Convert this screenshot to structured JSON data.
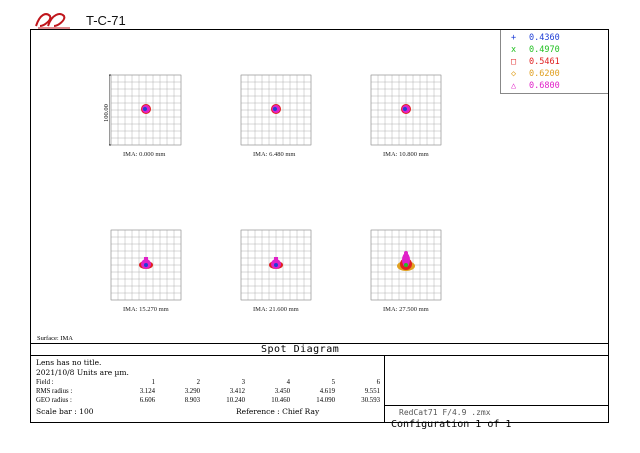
{
  "app": {
    "title": "T-C-71"
  },
  "legend": [
    {
      "wavelength": "0.4360",
      "marker": "+",
      "color": "#1f3fd6"
    },
    {
      "wavelength": "0.4970",
      "marker": "x",
      "color": "#22c022"
    },
    {
      "wavelength": "0.5461",
      "marker": "□",
      "color": "#e02020"
    },
    {
      "wavelength": "0.6200",
      "marker": "◇",
      "color": "#e0a020"
    },
    {
      "wavelength": "0.6800",
      "marker": "△",
      "color": "#e020c8"
    }
  ],
  "scale_label": "100.00",
  "fields": [
    {
      "label": "IMA: 0.000 mm",
      "size": "small"
    },
    {
      "label": "IMA: 6.480 mm",
      "size": "small"
    },
    {
      "label": "IMA: 10.800 mm",
      "size": "small"
    },
    {
      "label": "IMA: 15.270 mm",
      "size": "medium"
    },
    {
      "label": "IMA: 21.600 mm",
      "size": "medium"
    },
    {
      "label": "IMA: 27.500 mm",
      "size": "large"
    }
  ],
  "surface": "Surface: IMA",
  "plot_title": "Spot Diagram",
  "info": {
    "line1": "Lens has no title.",
    "line2": "2021/10/8  Units are µm.",
    "field_label": "Field      :",
    "field_values": [
      "1",
      "2",
      "3",
      "4",
      "5",
      "6"
    ],
    "rms_label": "RMS radius :",
    "rms_values": [
      "3.124",
      "3.290",
      "3.412",
      "3.450",
      "4.619",
      "9.551"
    ],
    "geo_label": "GEO radius :",
    "geo_values": [
      "6.606",
      "8.903",
      "10.240",
      "10.460",
      "14.090",
      "30.593"
    ],
    "scale_bar": "Scale bar  : 100",
    "reference": "Reference   : Chief Ray"
  },
  "file": "RedCat71 F/4.9  .zmx",
  "configuration": "Configuration  1  of  1"
}
